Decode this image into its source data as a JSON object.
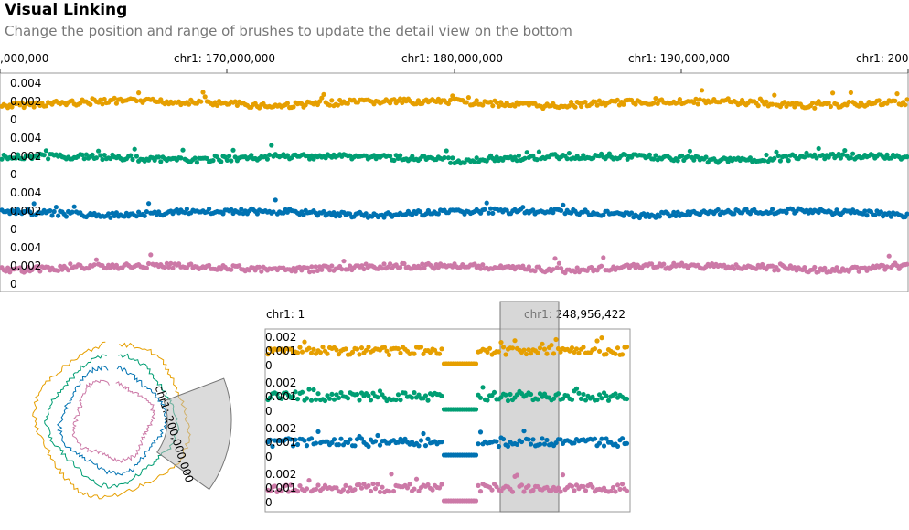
{
  "header": {
    "title": "Visual Linking",
    "subtitle": "Change the position and range of brushes to update the detail view on the bottom"
  },
  "top_view": {
    "axis_ticks": [
      ",000,000",
      "chr1: 170,000,000",
      "chr1: 180,000,000",
      "chr1: 190,000,000",
      "chr1: 200"
    ],
    "y_ticks": [
      "0.004",
      "0.002",
      "0"
    ]
  },
  "circular_view": {
    "brush_label": "chr1: 200,000,000"
  },
  "detail_view": {
    "start_label": "chr1: 1",
    "end_label": "chr1: 248,956,422",
    "y_ticks": [
      "0.002",
      "0.001",
      "0"
    ]
  },
  "colors": {
    "series": [
      "#E69F00",
      "#009E73",
      "#0072B2",
      "#CC79A7"
    ],
    "brush": "#bdbdbd"
  }
}
